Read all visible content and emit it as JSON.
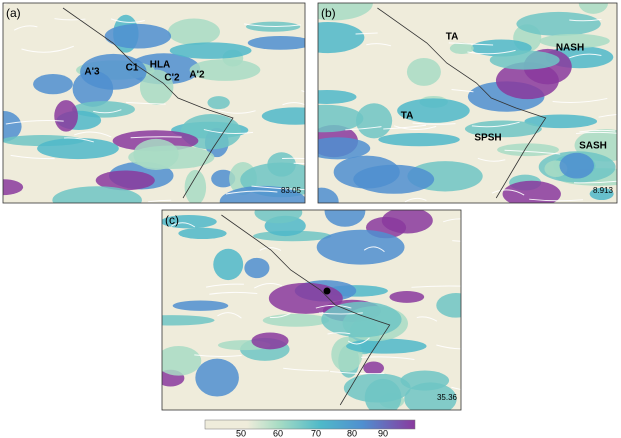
{
  "panels": [
    {
      "label": "(a)",
      "annotations": [
        "A'3",
        "C1",
        "HLA",
        "C'2",
        "A'2"
      ],
      "value": 83.05
    },
    {
      "label": "(b)",
      "annotations": [
        "TA",
        "NASH",
        "TA",
        "SPSH",
        "SASH"
      ],
      "value": 8.913
    },
    {
      "label": "(c)",
      "annotations": [],
      "value": 35.36
    }
  ],
  "colorbar": {
    "ticks": [
      50,
      60,
      70,
      80,
      90
    ]
  }
}
